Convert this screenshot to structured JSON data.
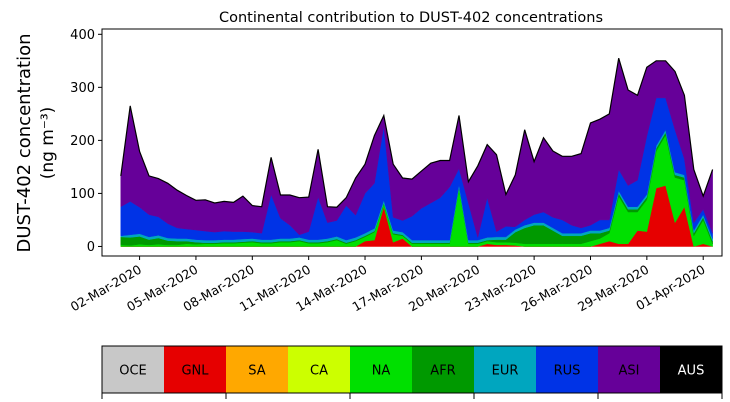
{
  "chart_data": {
    "type": "area",
    "stacked": true,
    "title": "Continental contribution to DUST-402 concentrations",
    "ylabel_line1": "DUST-402 concentration",
    "ylabel_line2": "(ng m⁻³)",
    "ylim": [
      -18,
      410
    ],
    "yticks": [
      0,
      100,
      200,
      300,
      400
    ],
    "x_start_day": 29,
    "x_end_day": 62,
    "xticks": [
      {
        "day": 31,
        "label": "02-Mar-2020"
      },
      {
        "day": 34,
        "label": "05-Mar-2020"
      },
      {
        "day": 37,
        "label": "08-Mar-2020"
      },
      {
        "day": 40,
        "label": "11-Mar-2020"
      },
      {
        "day": 43,
        "label": "14-Mar-2020"
      },
      {
        "day": 46,
        "label": "17-Mar-2020"
      },
      {
        "day": 49,
        "label": "20-Mar-2020"
      },
      {
        "day": 52,
        "label": "23-Mar-2020"
      },
      {
        "day": 55,
        "label": "26-Mar-2020"
      },
      {
        "day": 58,
        "label": "29-Mar-2020"
      },
      {
        "day": 61,
        "label": "01-Apr-2020"
      }
    ],
    "x": [
      30.0,
      30.5,
      31.0,
      31.5,
      32.0,
      32.5,
      33.0,
      33.5,
      34.0,
      34.5,
      35.0,
      35.5,
      36.0,
      36.5,
      37.0,
      37.5,
      38.0,
      38.5,
      39.0,
      39.5,
      40.0,
      40.5,
      41.0,
      41.5,
      42.0,
      42.5,
      43.0,
      43.5,
      44.0,
      44.5,
      45.0,
      45.5,
      46.0,
      46.5,
      47.0,
      47.5,
      48.0,
      48.5,
      49.0,
      49.5,
      50.0,
      50.5,
      51.0,
      51.5,
      52.0,
      52.5,
      53.0,
      53.5,
      54.0,
      54.5,
      55.0,
      55.5,
      56.0,
      56.5,
      57.0,
      57.5,
      58.0,
      58.5,
      59.0,
      59.5,
      60.0,
      60.5,
      61.0,
      61.5
    ],
    "series": [
      {
        "name": "GNL",
        "color": "#e60000",
        "values": [
          0,
          0,
          0,
          0,
          0,
          0,
          0,
          0,
          0,
          0,
          0,
          0,
          0,
          0,
          0,
          0,
          0,
          0,
          0,
          0,
          0,
          0,
          0,
          0,
          0,
          0,
          10,
          12,
          75,
          8,
          15,
          0,
          0,
          0,
          0,
          0,
          0,
          0,
          0,
          5,
          3,
          3,
          2,
          0,
          0,
          0,
          0,
          0,
          0,
          0,
          0,
          5,
          10,
          5,
          5,
          30,
          28,
          110,
          115,
          45,
          75,
          0,
          5,
          0
        ]
      },
      {
        "name": "NA",
        "color": "#00e000",
        "values": [
          3,
          2,
          4,
          3,
          4,
          3,
          3,
          5,
          4,
          5,
          5,
          6,
          6,
          7,
          8,
          6,
          6,
          8,
          8,
          10,
          6,
          6,
          8,
          12,
          5,
          10,
          8,
          15,
          5,
          15,
          5,
          5,
          5,
          5,
          5,
          5,
          110,
          5,
          5,
          5,
          5,
          5,
          5,
          5,
          5,
          5,
          5,
          5,
          5,
          5,
          10,
          10,
          15,
          90,
          60,
          35,
          60,
          70,
          95,
          85,
          50,
          20,
          45,
          5
        ]
      },
      {
        "name": "AFR",
        "color": "#009900",
        "values": [
          15,
          15,
          15,
          10,
          12,
          8,
          7,
          5,
          4,
          2,
          2,
          2,
          2,
          2,
          2,
          2,
          2,
          2,
          2,
          2,
          2,
          2,
          2,
          2,
          2,
          2,
          2,
          2,
          2,
          2,
          2,
          2,
          2,
          2,
          2,
          2,
          2,
          2,
          2,
          2,
          5,
          5,
          20,
          30,
          35,
          35,
          25,
          15,
          15,
          15,
          15,
          10,
          5,
          5,
          5,
          5,
          5,
          5,
          5,
          5,
          5,
          5,
          5,
          5
        ]
      },
      {
        "name": "EUR",
        "color": "#00a6bf",
        "values": [
          2,
          5,
          5,
          5,
          5,
          5,
          5,
          5,
          5,
          5,
          5,
          5,
          5,
          5,
          5,
          5,
          5,
          5,
          5,
          5,
          5,
          5,
          5,
          5,
          5,
          5,
          5,
          5,
          5,
          5,
          5,
          5,
          5,
          5,
          5,
          5,
          5,
          5,
          5,
          5,
          5,
          5,
          5,
          5,
          5,
          5,
          5,
          5,
          5,
          5,
          5,
          5,
          5,
          5,
          5,
          5,
          5,
          5,
          5,
          5,
          5,
          5,
          5,
          5
        ]
      },
      {
        "name": "RUS",
        "color": "#0033e6",
        "values": [
          55,
          63,
          50,
          42,
          35,
          27,
          20,
          18,
          18,
          17,
          15,
          16,
          15,
          14,
          12,
          12,
          85,
          38,
          25,
          5,
          15,
          80,
          30,
          30,
          65,
          42,
          75,
          85,
          140,
          25,
          22,
          45,
          60,
          70,
          80,
          100,
          30,
          70,
          5,
          75,
          10,
          20,
          5,
          10,
          15,
          20,
          20,
          25,
          15,
          10,
          10,
          20,
          15,
          40,
          40,
          50,
          110,
          90,
          60,
          80,
          30,
          15,
          10,
          10
        ]
      },
      {
        "name": "ASI",
        "color": "#660099",
        "values": [
          58,
          180,
          105,
          73,
          72,
          76,
          71,
          63,
          56,
          59,
          55,
          56,
          55,
          67,
          50,
          50,
          70,
          44,
          57,
          70,
          65,
          90,
          30,
          25,
          15,
          70,
          55,
          90,
          20,
          100,
          80,
          70,
          70,
          75,
          70,
          50,
          100,
          40,
          135,
          100,
          145,
          60,
          98,
          170,
          100,
          140,
          125,
          120,
          130,
          140,
          193,
          190,
          200,
          210,
          180,
          160,
          130,
          70,
          70,
          110,
          120,
          100,
          25,
          120
        ]
      }
    ],
    "total_line": {
      "color": "#000000"
    },
    "legend": {
      "placement": "bottom",
      "entries": [
        {
          "label": "OCE",
          "color": "#c8c8c8"
        },
        {
          "label": "GNL",
          "color": "#e60000"
        },
        {
          "label": "SA",
          "color": "#ffa800"
        },
        {
          "label": "CA",
          "color": "#ccff00"
        },
        {
          "label": "NA",
          "color": "#00e000"
        },
        {
          "label": "AFR",
          "color": "#009900"
        },
        {
          "label": "EUR",
          "color": "#00a6bf"
        },
        {
          "label": "RUS",
          "color": "#0033e6"
        },
        {
          "label": "ASI",
          "color": "#660099"
        },
        {
          "label": "AUS",
          "color": "#000000"
        }
      ]
    },
    "grid": false
  }
}
